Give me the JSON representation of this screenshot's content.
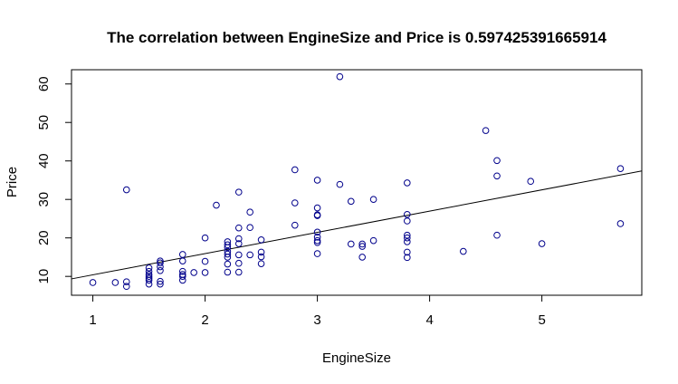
{
  "chart_data": {
    "type": "scatter",
    "title": "The correlation between EngineSize  and  Price  is  0.597425391665914",
    "xlabel": "EngineSize",
    "ylabel": "Price",
    "xlim": [
      0.81,
      5.89
    ],
    "ylim": [
      5.1,
      63.7
    ],
    "xticks": [
      "1",
      "2",
      "3",
      "4",
      "5"
    ],
    "yticks": [
      "10",
      "20",
      "30",
      "40",
      "50",
      "60"
    ],
    "grid": false,
    "legend": "none",
    "point_color": "#00008b",
    "line_color": "#000000",
    "regression_line": {
      "x": [
        0.81,
        5.89
      ],
      "y": [
        9.35,
        37.4
      ]
    },
    "points": [
      {
        "x": 1.0,
        "y": 8.4
      },
      {
        "x": 1.2,
        "y": 8.4
      },
      {
        "x": 1.3,
        "y": 7.4
      },
      {
        "x": 1.3,
        "y": 8.6
      },
      {
        "x": 1.3,
        "y": 32.5
      },
      {
        "x": 1.5,
        "y": 8.0
      },
      {
        "x": 1.5,
        "y": 9.0
      },
      {
        "x": 1.5,
        "y": 9.5
      },
      {
        "x": 1.5,
        "y": 10.0
      },
      {
        "x": 1.5,
        "y": 10.5
      },
      {
        "x": 1.5,
        "y": 11.3
      },
      {
        "x": 1.5,
        "y": 12.2
      },
      {
        "x": 1.6,
        "y": 8.0
      },
      {
        "x": 1.6,
        "y": 8.7
      },
      {
        "x": 1.6,
        "y": 11.5
      },
      {
        "x": 1.6,
        "y": 12.5
      },
      {
        "x": 1.6,
        "y": 13.5
      },
      {
        "x": 1.6,
        "y": 14.0
      },
      {
        "x": 1.8,
        "y": 9.0
      },
      {
        "x": 1.8,
        "y": 10.0
      },
      {
        "x": 1.8,
        "y": 10.5
      },
      {
        "x": 1.8,
        "y": 11.3
      },
      {
        "x": 1.8,
        "y": 14.0
      },
      {
        "x": 1.8,
        "y": 15.7
      },
      {
        "x": 1.9,
        "y": 11.0
      },
      {
        "x": 2.0,
        "y": 11.0
      },
      {
        "x": 2.0,
        "y": 13.9
      },
      {
        "x": 2.0,
        "y": 20.0
      },
      {
        "x": 2.1,
        "y": 28.5
      },
      {
        "x": 2.2,
        "y": 11.1
      },
      {
        "x": 2.2,
        "y": 13.2
      },
      {
        "x": 2.2,
        "y": 15.0
      },
      {
        "x": 2.2,
        "y": 15.8
      },
      {
        "x": 2.2,
        "y": 16.5
      },
      {
        "x": 2.2,
        "y": 17.5
      },
      {
        "x": 2.2,
        "y": 18.2
      },
      {
        "x": 2.2,
        "y": 19.0
      },
      {
        "x": 2.3,
        "y": 11.1
      },
      {
        "x": 2.3,
        "y": 13.4
      },
      {
        "x": 2.3,
        "y": 15.6
      },
      {
        "x": 2.3,
        "y": 18.5
      },
      {
        "x": 2.3,
        "y": 19.8
      },
      {
        "x": 2.3,
        "y": 22.6
      },
      {
        "x": 2.3,
        "y": 31.9
      },
      {
        "x": 2.4,
        "y": 15.6
      },
      {
        "x": 2.4,
        "y": 22.7
      },
      {
        "x": 2.4,
        "y": 26.7
      },
      {
        "x": 2.5,
        "y": 13.3
      },
      {
        "x": 2.5,
        "y": 15.1
      },
      {
        "x": 2.5,
        "y": 16.3
      },
      {
        "x": 2.5,
        "y": 19.5
      },
      {
        "x": 2.8,
        "y": 23.3
      },
      {
        "x": 2.8,
        "y": 29.1
      },
      {
        "x": 2.8,
        "y": 37.7
      },
      {
        "x": 3.0,
        "y": 15.9
      },
      {
        "x": 3.0,
        "y": 18.8
      },
      {
        "x": 3.0,
        "y": 19.3
      },
      {
        "x": 3.0,
        "y": 20.2
      },
      {
        "x": 3.0,
        "y": 21.5
      },
      {
        "x": 3.0,
        "y": 25.8
      },
      {
        "x": 3.0,
        "y": 26.0
      },
      {
        "x": 3.0,
        "y": 27.8
      },
      {
        "x": 3.0,
        "y": 35.0
      },
      {
        "x": 3.2,
        "y": 33.9
      },
      {
        "x": 3.2,
        "y": 61.9
      },
      {
        "x": 3.3,
        "y": 18.4
      },
      {
        "x": 3.3,
        "y": 29.5
      },
      {
        "x": 3.4,
        "y": 15.0
      },
      {
        "x": 3.4,
        "y": 17.8
      },
      {
        "x": 3.4,
        "y": 18.4
      },
      {
        "x": 3.5,
        "y": 19.3
      },
      {
        "x": 3.5,
        "y": 30.0
      },
      {
        "x": 3.8,
        "y": 14.9
      },
      {
        "x": 3.8,
        "y": 16.3
      },
      {
        "x": 3.8,
        "y": 19.0
      },
      {
        "x": 3.8,
        "y": 20.0
      },
      {
        "x": 3.8,
        "y": 20.7
      },
      {
        "x": 3.8,
        "y": 24.4
      },
      {
        "x": 3.8,
        "y": 26.1
      },
      {
        "x": 3.8,
        "y": 34.3
      },
      {
        "x": 4.3,
        "y": 16.5
      },
      {
        "x": 4.5,
        "y": 47.9
      },
      {
        "x": 4.6,
        "y": 20.7
      },
      {
        "x": 4.6,
        "y": 36.1
      },
      {
        "x": 4.6,
        "y": 40.1
      },
      {
        "x": 4.9,
        "y": 34.7
      },
      {
        "x": 5.0,
        "y": 18.5
      },
      {
        "x": 5.7,
        "y": 23.7
      },
      {
        "x": 5.7,
        "y": 38.0
      }
    ]
  }
}
